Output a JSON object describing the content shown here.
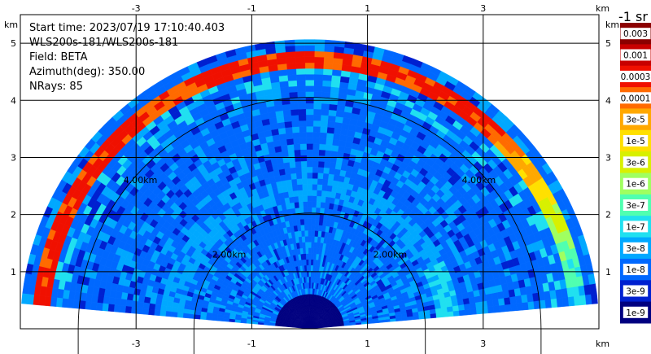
{
  "info": {
    "lines": [
      "Start time: 2023/07/19 17:10:40.403",
      "WLS200s-181/WLS200s-181",
      "Field: BETA",
      "Azimuth(deg): 350.00",
      "NRays: 85"
    ]
  },
  "chart_data": {
    "type": "heatmap",
    "title": "",
    "xlabel": "km",
    "ylabel": "km",
    "xlim": [
      -5.0,
      5.0
    ],
    "ylim": [
      0.0,
      5.5
    ],
    "x_ticks": [
      "-3",
      "-1",
      "1",
      "3"
    ],
    "x_tick_values": [
      -3,
      -1,
      1,
      3
    ],
    "y_ticks": [
      "1",
      "2",
      "3",
      "4",
      "5"
    ],
    "y_tick_values": [
      1,
      2,
      3,
      4,
      5
    ],
    "grid": true,
    "range_rings": [
      {
        "radius_km": 2.0,
        "label": "2.00km"
      },
      {
        "radius_km": 4.0,
        "label": "4.00km"
      }
    ],
    "scan": {
      "max_range_km": 5.0,
      "elevation_min_deg": 5,
      "elevation_max_deg": 175,
      "nrays": 85,
      "dominant_level": "1e-8",
      "features": [
        {
          "range_km_from": 4.5,
          "range_km_to": 4.75,
          "level": "0.0003",
          "description": "strong return band at top of scan"
        },
        {
          "range_km_from": 2.2,
          "range_km_to": 2.6,
          "level": "3e-8",
          "description": "light band"
        },
        {
          "range_km_from": 0.0,
          "range_km_to": 0.6,
          "level": "1e-9",
          "description": "weak returns near instrument"
        }
      ]
    },
    "colorbar": {
      "title": "-1 sr",
      "levels": [
        "0.003",
        "0.001",
        "0.0003",
        "0.0001",
        "3e-5",
        "1e-5",
        "3e-6",
        "1e-6",
        "3e-7",
        "1e-7",
        "3e-8",
        "1e-8",
        "3e-9",
        "1e-9"
      ],
      "colors": [
        "#8b0000",
        "#c80000",
        "#f01000",
        "#ff6a00",
        "#ffa800",
        "#ffe000",
        "#d8f000",
        "#a0ff60",
        "#50ffb0",
        "#20e0f0",
        "#00a8ff",
        "#0068ff",
        "#0020d0",
        "#000080"
      ]
    }
  }
}
